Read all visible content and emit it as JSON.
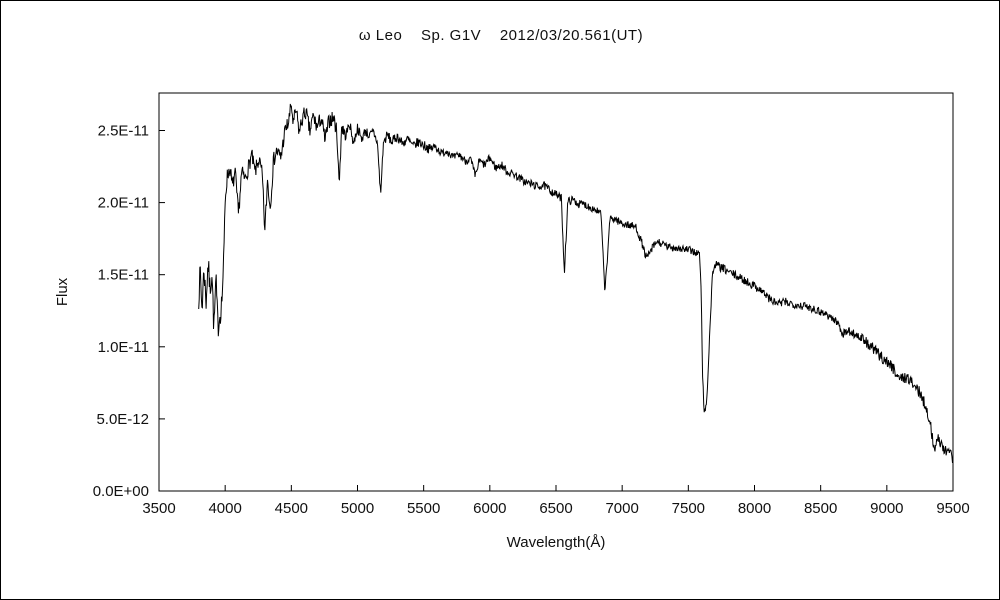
{
  "chart_data": {
    "type": "line",
    "title": "ω Leo    Sp. G1V    2012/03/20.561(UT)",
    "xlabel": "Wavelength(Å)",
    "ylabel": "Flux",
    "grid": false,
    "legend": false,
    "line_color": "#000000",
    "xlim": [
      3500,
      9500
    ],
    "ylim": [
      0,
      2.76e-11
    ],
    "ylim_e12": [
      0,
      27.6
    ],
    "y_values_unit": "1e-12",
    "x_ticks": [
      3500,
      4000,
      4500,
      5000,
      5500,
      6000,
      6500,
      7000,
      7500,
      8000,
      8500,
      9000,
      9500
    ],
    "y_ticks": [
      {
        "value_e12": 0,
        "label": "0.0E+00"
      },
      {
        "value_e12": 5,
        "label": "5.0E-12"
      },
      {
        "value_e12": 10,
        "label": "1.0E-11"
      },
      {
        "value_e12": 15,
        "label": "1.5E-11"
      },
      {
        "value_e12": 20,
        "label": "2.0E-11"
      },
      {
        "value_e12": 25,
        "label": "2.5E-11"
      }
    ],
    "noise": {
      "seed": 7,
      "step_angstrom": 4,
      "segments": [
        {
          "until_angstrom": 4000,
          "amp_e12": 0.9
        },
        {
          "until_angstrom": 4900,
          "amp_e12": 0.55
        },
        {
          "until_angstrom": 5600,
          "amp_e12": 0.35
        },
        {
          "until_angstrom": 7600,
          "amp_e12": 0.28
        },
        {
          "until_angstrom": 8800,
          "amp_e12": 0.3
        },
        {
          "until_angstrom": 9600,
          "amp_e12": 0.4
        }
      ]
    },
    "series": [
      {
        "name": "omega-leo-spectrum",
        "points_e12": [
          [
            3800,
            13.5
          ],
          [
            3812,
            15.2
          ],
          [
            3825,
            12.6
          ],
          [
            3840,
            15.5
          ],
          [
            3855,
            13.0
          ],
          [
            3870,
            15.8
          ],
          [
            3885,
            14.0
          ],
          [
            3900,
            15.2
          ],
          [
            3915,
            11.2
          ],
          [
            3930,
            14.6
          ],
          [
            3945,
            11.4
          ],
          [
            3960,
            12.2
          ],
          [
            3975,
            13.2
          ],
          [
            3990,
            16.0
          ],
          [
            4000,
            20.3
          ],
          [
            4015,
            21.8
          ],
          [
            4035,
            22.4
          ],
          [
            4055,
            21.1
          ],
          [
            4075,
            22.1
          ],
          [
            4100,
            19.2
          ],
          [
            4125,
            22.1
          ],
          [
            4150,
            21.6
          ],
          [
            4180,
            22.6
          ],
          [
            4200,
            23.3
          ],
          [
            4225,
            22.1
          ],
          [
            4255,
            23.0
          ],
          [
            4280,
            21.9
          ],
          [
            4300,
            18.0
          ],
          [
            4320,
            21.6
          ],
          [
            4340,
            19.6
          ],
          [
            4365,
            22.9
          ],
          [
            4390,
            23.6
          ],
          [
            4420,
            23.1
          ],
          [
            4450,
            24.9
          ],
          [
            4480,
            25.6
          ],
          [
            4500,
            26.8
          ],
          [
            4515,
            25.4
          ],
          [
            4535,
            26.4
          ],
          [
            4560,
            24.9
          ],
          [
            4585,
            25.9
          ],
          [
            4610,
            26.3
          ],
          [
            4640,
            24.9
          ],
          [
            4665,
            26.0
          ],
          [
            4695,
            25.2
          ],
          [
            4725,
            25.9
          ],
          [
            4755,
            24.3
          ],
          [
            4785,
            25.7
          ],
          [
            4820,
            25.9
          ],
          [
            4845,
            24.8
          ],
          [
            4861,
            21.2
          ],
          [
            4880,
            25.3
          ],
          [
            4910,
            24.6
          ],
          [
            4940,
            25.5
          ],
          [
            4970,
            24.1
          ],
          [
            5000,
            25.2
          ],
          [
            5030,
            24.4
          ],
          [
            5060,
            25.0
          ],
          [
            5090,
            24.6
          ],
          [
            5120,
            24.9
          ],
          [
            5150,
            24.2
          ],
          [
            5175,
            20.5
          ],
          [
            5195,
            24.1
          ],
          [
            5225,
            24.7
          ],
          [
            5260,
            24.2
          ],
          [
            5300,
            24.6
          ],
          [
            5340,
            24.1
          ],
          [
            5380,
            24.4
          ],
          [
            5420,
            23.9
          ],
          [
            5460,
            24.2
          ],
          [
            5500,
            24.0
          ],
          [
            5545,
            23.7
          ],
          [
            5590,
            23.9
          ],
          [
            5635,
            23.4
          ],
          [
            5680,
            23.6
          ],
          [
            5725,
            23.1
          ],
          [
            5770,
            23.3
          ],
          [
            5815,
            22.9
          ],
          [
            5855,
            23.0
          ],
          [
            5890,
            21.8
          ],
          [
            5920,
            22.9
          ],
          [
            5960,
            22.6
          ],
          [
            6000,
            23.1
          ],
          [
            6045,
            22.4
          ],
          [
            6090,
            22.6
          ],
          [
            6135,
            22.1
          ],
          [
            6180,
            22.0
          ],
          [
            6225,
            21.7
          ],
          [
            6270,
            21.4
          ],
          [
            6315,
            21.3
          ],
          [
            6360,
            21.1
          ],
          [
            6405,
            21.2
          ],
          [
            6450,
            20.9
          ],
          [
            6495,
            20.6
          ],
          [
            6540,
            20.3
          ],
          [
            6563,
            15.2
          ],
          [
            6590,
            20.1
          ],
          [
            6630,
            20.2
          ],
          [
            6670,
            19.9
          ],
          [
            6710,
            19.9
          ],
          [
            6755,
            19.7
          ],
          [
            6800,
            19.5
          ],
          [
            6840,
            19.2
          ],
          [
            6868,
            14.0
          ],
          [
            6885,
            15.5
          ],
          [
            6905,
            18.8
          ],
          [
            6945,
            18.9
          ],
          [
            6985,
            18.6
          ],
          [
            7025,
            18.5
          ],
          [
            7065,
            18.4
          ],
          [
            7105,
            18.3
          ],
          [
            7145,
            17.3
          ],
          [
            7185,
            16.1
          ],
          [
            7225,
            16.8
          ],
          [
            7265,
            17.3
          ],
          [
            7305,
            17.1
          ],
          [
            7350,
            16.9
          ],
          [
            7400,
            16.9
          ],
          [
            7450,
            16.8
          ],
          [
            7500,
            16.7
          ],
          [
            7545,
            16.6
          ],
          [
            7585,
            16.4
          ],
          [
            7595,
            14.5
          ],
          [
            7608,
            8.0
          ],
          [
            7621,
            5.2
          ],
          [
            7640,
            6.4
          ],
          [
            7662,
            11.0
          ],
          [
            7683,
            15.2
          ],
          [
            7705,
            15.7
          ],
          [
            7745,
            15.5
          ],
          [
            7785,
            15.3
          ],
          [
            7825,
            15.1
          ],
          [
            7865,
            14.9
          ],
          [
            7905,
            14.7
          ],
          [
            7945,
            14.5
          ],
          [
            7985,
            14.3
          ],
          [
            8025,
            14.1
          ],
          [
            8065,
            13.8
          ],
          [
            8105,
            13.4
          ],
          [
            8145,
            13.1
          ],
          [
            8185,
            13.0
          ],
          [
            8235,
            13.1
          ],
          [
            8285,
            13.0
          ],
          [
            8335,
            12.9
          ],
          [
            8385,
            12.8
          ],
          [
            8435,
            12.7
          ],
          [
            8485,
            12.5
          ],
          [
            8535,
            12.3
          ],
          [
            8585,
            12.0
          ],
          [
            8635,
            11.6
          ],
          [
            8665,
            10.9
          ],
          [
            8705,
            11.1
          ],
          [
            8755,
            10.9
          ],
          [
            8805,
            10.6
          ],
          [
            8855,
            10.2
          ],
          [
            8905,
            9.8
          ],
          [
            8955,
            9.3
          ],
          [
            9000,
            9.0
          ],
          [
            9050,
            8.5
          ],
          [
            9100,
            7.8
          ],
          [
            9150,
            7.9
          ],
          [
            9200,
            7.4
          ],
          [
            9250,
            6.8
          ],
          [
            9300,
            5.8
          ],
          [
            9330,
            4.5
          ],
          [
            9360,
            2.9
          ],
          [
            9390,
            3.6
          ],
          [
            9420,
            3.2
          ],
          [
            9450,
            2.6
          ],
          [
            9480,
            2.9
          ],
          [
            9500,
            2.2
          ]
        ]
      }
    ]
  }
}
